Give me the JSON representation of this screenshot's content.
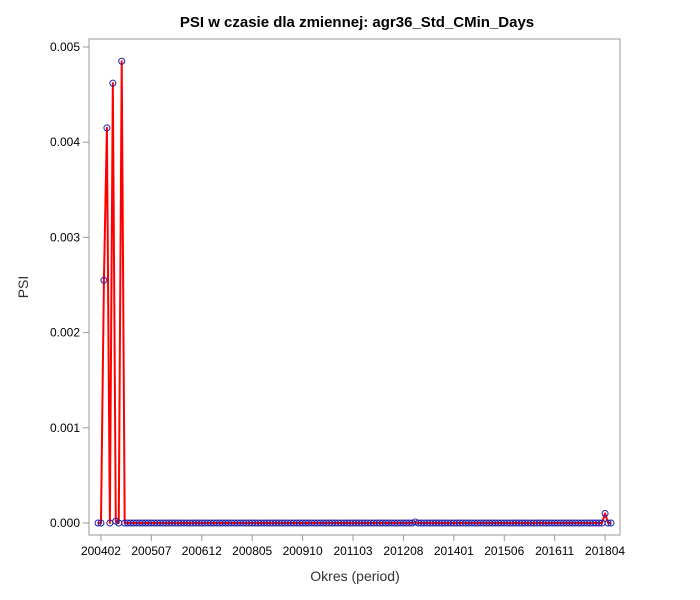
{
  "chart_data": {
    "type": "line",
    "title": "PSI w czasie dla zmiennej: agr36_Std_CMin_Days",
    "xlabel": "Okres (period)",
    "ylabel": "PSI",
    "ylim": [
      0,
      0.005
    ],
    "yticks": [
      "0.000",
      "0.001",
      "0.002",
      "0.003",
      "0.004",
      "0.005"
    ],
    "x_tick_labels": [
      "200402",
      "200507",
      "200612",
      "200805",
      "200910",
      "201103",
      "201208",
      "201401",
      "201506",
      "201611",
      "201804"
    ],
    "x_start_period": "200401",
    "x_end_period": "201806",
    "point_interval_months": 1,
    "series": [
      {
        "line_color": "#ff0000",
        "marker_color": "#1f1fa8",
        "marker": "circle",
        "points": [
          {
            "x": "200401",
            "y": 0.0
          },
          {
            "x": "200402",
            "y": 0.0
          },
          {
            "x": "200403",
            "y": 0.00255
          },
          {
            "x": "200404",
            "y": 0.00415
          },
          {
            "x": "200405",
            "y": 0.0
          },
          {
            "x": "200406",
            "y": 0.00462
          },
          {
            "x": "200407",
            "y": 2e-05
          },
          {
            "x": "200408",
            "y": 0.0
          },
          {
            "x": "200409",
            "y": 0.00485
          },
          {
            "x": "200410",
            "y": 0.0
          },
          {
            "x": "201212",
            "y": 1e-05
          },
          {
            "x": "201804",
            "y": 0.0001
          }
        ],
        "default_y": 0.0
      }
    ],
    "grid": false,
    "legend": "none"
  }
}
